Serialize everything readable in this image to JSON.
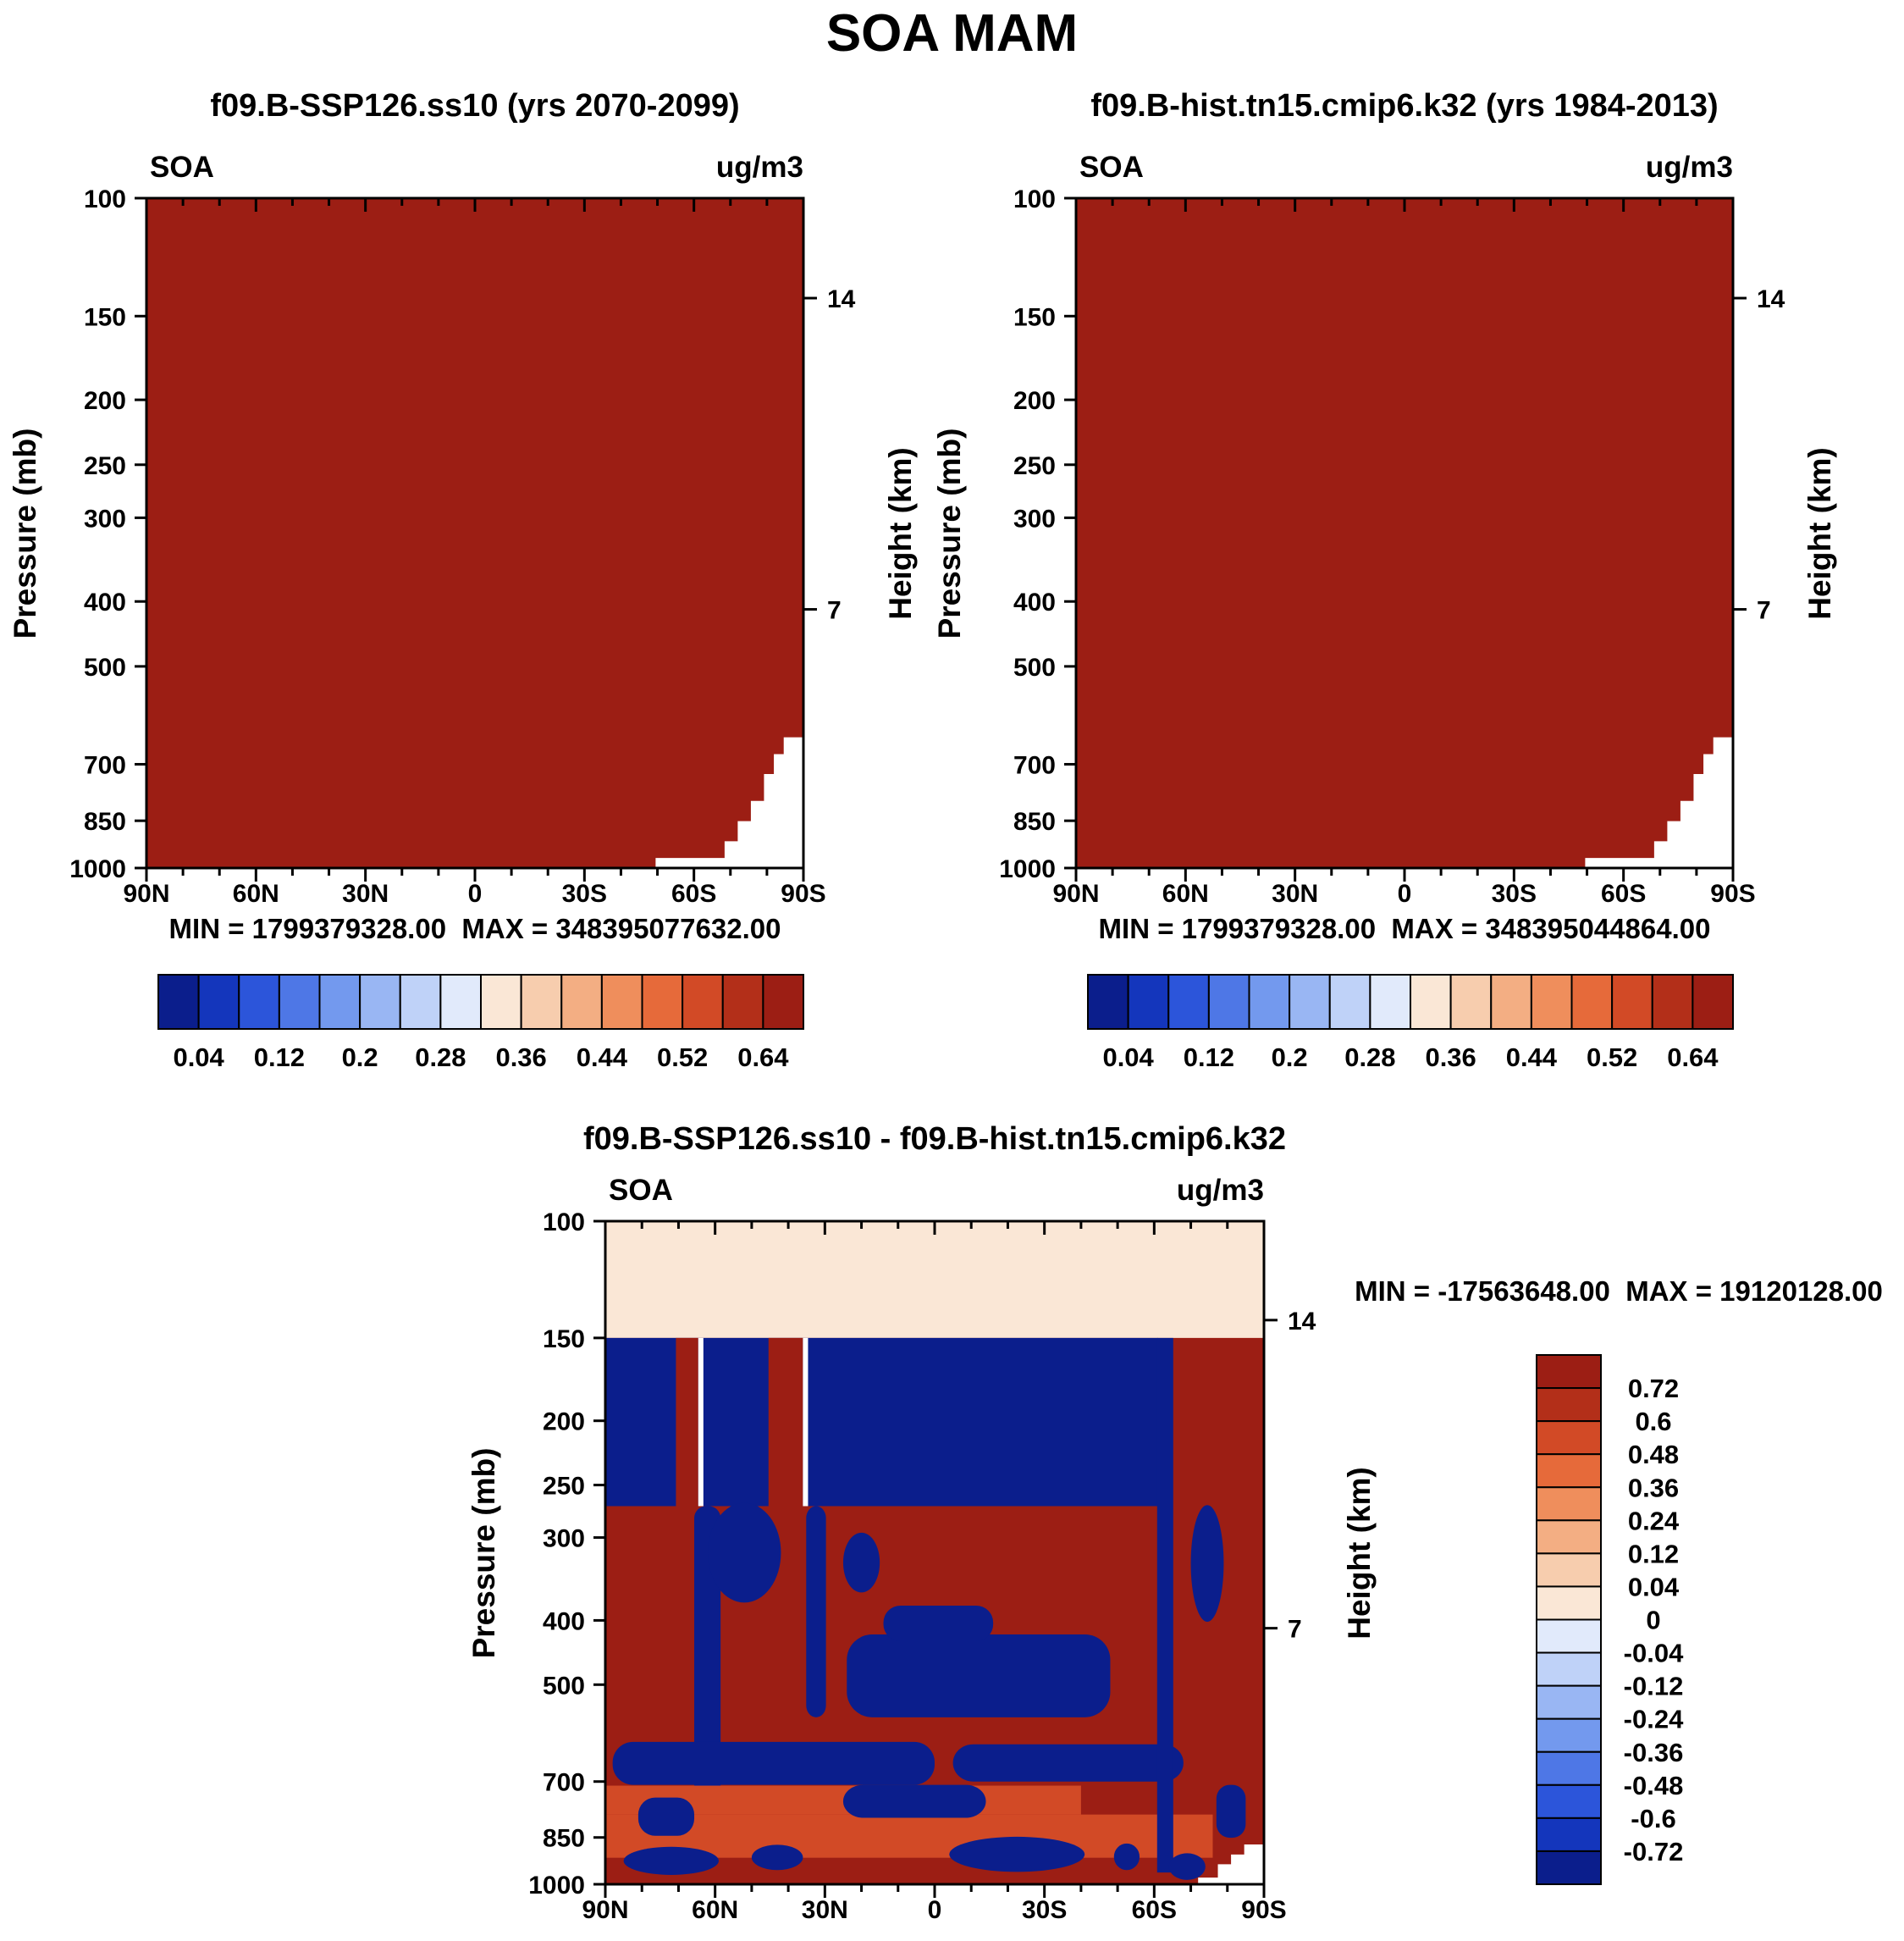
{
  "page": {
    "title": "SOA MAM"
  },
  "colors": {
    "background": "#FFFFFF",
    "frame": "#000000",
    "palette": [
      "#0B1E8C",
      "#1436BC",
      "#2C55DA",
      "#4E77E6",
      "#7399EE",
      "#99B6F3",
      "#BFD2F8",
      "#E1EAFB",
      "#FAE7D6",
      "#F7CDAE",
      "#F3AE83",
      "#EF8E5C",
      "#E66A3A",
      "#D24A26",
      "#B32F19",
      "#9C1E14"
    ]
  },
  "axes": {
    "ylabel": "Pressure (mb)",
    "y2label": "Height (km)",
    "pressure_ticks": [
      100,
      150,
      200,
      250,
      300,
      400,
      500,
      700,
      850,
      1000
    ],
    "height_ticks": [
      {
        "label": "14",
        "pressure": 141
      },
      {
        "label": "7",
        "pressure": 411
      }
    ],
    "lat_ticks": [
      {
        "label": "90N",
        "value": 90
      },
      {
        "label": "60N",
        "value": 60
      },
      {
        "label": "30N",
        "value": 30
      },
      {
        "label": "0",
        "value": 0
      },
      {
        "label": "30S",
        "value": -30
      },
      {
        "label": "60S",
        "value": -60
      },
      {
        "label": "90S",
        "value": -90
      }
    ],
    "lat_minor_step": 10
  },
  "chart_data": [
    {
      "type": "heatmap",
      "panel": "top-left",
      "title": "f09.B-SSP126.ss10 (yrs 2070-2099)",
      "variable": "SOA",
      "units": "ug/m3",
      "season": "MAM",
      "x_axis": {
        "label": "Latitude",
        "ticks": [
          "90N",
          "60N",
          "30N",
          "0",
          "30S",
          "60S",
          "90S"
        ],
        "range": [
          90,
          -90
        ]
      },
      "y_axis": {
        "label": "Pressure (mb)",
        "scale": "log",
        "ticks": [
          100,
          150,
          200,
          250,
          300,
          400,
          500,
          700,
          850,
          1000
        ],
        "range": [
          100,
          1000
        ]
      },
      "y2_axis": {
        "label": "Height (km)",
        "ticks": [
          14,
          7
        ]
      },
      "stats": {
        "min": 1799379328.0,
        "max": 348395077632.0
      },
      "stats_text": "MIN = 1799379328.00  MAX = 348395077632.00",
      "colorbar": {
        "orientation": "horizontal",
        "labels": [
          "0.04",
          "0.12",
          "0.2",
          "0.28",
          "0.36",
          "0.44",
          "0.52",
          "0.64"
        ]
      },
      "base_color": 15,
      "field_note": "Entire cross-section saturated above top contour level (uniform dark red); white staircase at lower right is Antarctic surface topography.",
      "features": [],
      "topography_polygon": [
        [
          -49.5,
          1000
        ],
        [
          -49.5,
          966
        ],
        [
          -68.4,
          966
        ],
        [
          -68.4,
          912
        ],
        [
          -72,
          912
        ],
        [
          -72,
          851
        ],
        [
          -75.6,
          851
        ],
        [
          -75.6,
          794
        ],
        [
          -79.2,
          794
        ],
        [
          -79.2,
          724
        ],
        [
          -81.9,
          724
        ],
        [
          -81.9,
          676
        ],
        [
          -84.6,
          676
        ],
        [
          -84.6,
          638
        ],
        [
          -90,
          638
        ],
        [
          -90,
          1000
        ]
      ]
    },
    {
      "type": "heatmap",
      "panel": "top-right",
      "title": "f09.B-hist.tn15.cmip6.k32 (yrs 1984-2013)",
      "variable": "SOA",
      "units": "ug/m3",
      "season": "MAM",
      "x_axis": {
        "label": "Latitude",
        "ticks": [
          "90N",
          "60N",
          "30N",
          "0",
          "30S",
          "60S",
          "90S"
        ],
        "range": [
          90,
          -90
        ]
      },
      "y_axis": {
        "label": "Pressure (mb)",
        "scale": "log",
        "ticks": [
          100,
          150,
          200,
          250,
          300,
          400,
          500,
          700,
          850,
          1000
        ],
        "range": [
          100,
          1000
        ]
      },
      "y2_axis": {
        "label": "Height (km)",
        "ticks": [
          14,
          7
        ]
      },
      "stats": {
        "min": 1799379328.0,
        "max": 348395044864.0
      },
      "stats_text": "MIN = 1799379328.00  MAX = 348395044864.00",
      "colorbar": {
        "orientation": "horizontal",
        "labels": [
          "0.04",
          "0.12",
          "0.2",
          "0.28",
          "0.36",
          "0.44",
          "0.52",
          "0.64"
        ]
      },
      "base_color": 15,
      "field_note": "Entire cross-section saturated above top contour level (uniform dark red); white staircase at lower right is Antarctic surface topography.",
      "features": [],
      "topography_polygon": [
        [
          -49.5,
          1000
        ],
        [
          -49.5,
          966
        ],
        [
          -68.4,
          966
        ],
        [
          -68.4,
          912
        ],
        [
          -72,
          912
        ],
        [
          -72,
          851
        ],
        [
          -75.6,
          851
        ],
        [
          -75.6,
          794
        ],
        [
          -79.2,
          794
        ],
        [
          -79.2,
          724
        ],
        [
          -81.9,
          724
        ],
        [
          -81.9,
          676
        ],
        [
          -84.6,
          676
        ],
        [
          -84.6,
          638
        ],
        [
          -90,
          638
        ],
        [
          -90,
          1000
        ]
      ]
    },
    {
      "type": "heatmap",
      "panel": "bottom-difference",
      "title": "f09.B-SSP126.ss10 - f09.B-hist.tn15.cmip6.k32",
      "variable": "SOA",
      "units": "ug/m3",
      "season": "MAM",
      "x_axis": {
        "label": "Latitude",
        "ticks": [
          "90N",
          "60N",
          "30N",
          "0",
          "30S",
          "60S",
          "90S"
        ],
        "range": [
          90,
          -90
        ]
      },
      "y_axis": {
        "label": "Pressure (mb)",
        "scale": "log",
        "ticks": [
          100,
          150,
          200,
          250,
          300,
          400,
          500,
          700,
          850,
          1000
        ],
        "range": [
          100,
          1000
        ]
      },
      "y2_axis": {
        "label": "Height (km)",
        "ticks": [
          14,
          7
        ]
      },
      "stats": {
        "min": -17563648.0,
        "max": 19120128.0
      },
      "stats_text": "MIN = -17563648.00  MAX = 19120128.00",
      "colorbar": {
        "orientation": "vertical",
        "labels": [
          "0.72",
          "0.6",
          "0.48",
          "0.36",
          "0.24",
          "0.12",
          "0.04",
          "0",
          "-0.04",
          "-0.12",
          "-0.24",
          "-0.36",
          "-0.48",
          "-0.6",
          "-0.72"
        ]
      },
      "base_color": 15,
      "field_note": "Difference field: weak positive layer above 150 mb; strong negative band 150-270 mb from 90N to ~60S with narrow positive streaks; mottled strong positive below 270 mb with embedded negative blobs and near-surface orange bands; white staircase topography at lower right.",
      "features": [
        {
          "shape": "rect",
          "lat": [
            90,
            -90
          ],
          "p": [
            100,
            150
          ],
          "c": 8
        },
        {
          "shape": "rect",
          "lat": [
            90,
            -61
          ],
          "p": [
            150,
            269
          ],
          "c": 0
        },
        {
          "shape": "rect",
          "lat": [
            70.7,
            64.6
          ],
          "p": [
            150,
            269
          ],
          "c": 15
        },
        {
          "shape": "rect",
          "lat": [
            64.6,
            63.2
          ],
          "p": [
            150,
            269
          ],
          "c": "white"
        },
        {
          "shape": "rect",
          "lat": [
            45.4,
            36
          ],
          "p": [
            150,
            269
          ],
          "c": 15
        },
        {
          "shape": "rect",
          "lat": [
            36,
            34.6
          ],
          "p": [
            150,
            269
          ],
          "c": "white"
        },
        {
          "shape": "rect",
          "lat": [
            65.7,
            58.5
          ],
          "p": [
            269,
            760
          ],
          "c": 0,
          "r": 14
        },
        {
          "shape": "rect",
          "lat": [
            35.1,
            29.7
          ],
          "p": [
            269,
            560
          ],
          "c": 0,
          "r": 14
        },
        {
          "shape": "ellipse",
          "lat": [
            62,
            42
          ],
          "p": [
            266,
            376
          ],
          "c": 0
        },
        {
          "shape": "ellipse",
          "lat": [
            25,
            15
          ],
          "p": [
            295,
            363
          ],
          "c": 0
        },
        {
          "shape": "rect",
          "lat": [
            24,
            -48
          ],
          "p": [
            420,
            560
          ],
          "c": 0,
          "r": 30
        },
        {
          "shape": "rect",
          "lat": [
            14,
            -16
          ],
          "p": [
            380,
            430
          ],
          "c": 0,
          "r": 20
        },
        {
          "shape": "rect",
          "lat": [
            88,
            0
          ],
          "p": [
            610,
            708
          ],
          "c": 0,
          "r": 24
        },
        {
          "shape": "rect",
          "lat": [
            -5,
            -68
          ],
          "p": [
            615,
            700
          ],
          "c": 0,
          "r": 24
        },
        {
          "shape": "rect",
          "lat": [
            90,
            -40
          ],
          "p": [
            710,
            785
          ],
          "c": 13
        },
        {
          "shape": "rect",
          "lat": [
            90,
            -76
          ],
          "p": [
            785,
            912
          ],
          "c": 13
        },
        {
          "shape": "rect",
          "lat": [
            81,
            65.7
          ],
          "p": [
            740,
            845
          ],
          "c": 0,
          "r": 20
        },
        {
          "shape": "rect",
          "lat": [
            25,
            -14
          ],
          "p": [
            708,
            794
          ],
          "c": 0,
          "r": 24
        },
        {
          "shape": "ellipse",
          "lat": [
            85,
            59
          ],
          "p": [
            878,
            968
          ],
          "c": 0
        },
        {
          "shape": "ellipse",
          "lat": [
            50,
            36
          ],
          "p": [
            872,
            952
          ],
          "c": 0
        },
        {
          "shape": "ellipse",
          "lat": [
            -4,
            -41
          ],
          "p": [
            848,
            958
          ],
          "c": 0
        },
        {
          "shape": "ellipse",
          "lat": [
            -49,
            -56
          ],
          "p": [
            868,
            952
          ],
          "c": 0
        },
        {
          "shape": "rect",
          "lat": [
            -60.8,
            -65.2
          ],
          "p": [
            150,
            960
          ],
          "c": 0
        },
        {
          "shape": "ellipse",
          "lat": [
            -70,
            -79
          ],
          "p": [
            268,
            402
          ],
          "c": 0
        },
        {
          "shape": "rect",
          "lat": [
            -77,
            -85
          ],
          "p": [
            708,
            851
          ],
          "c": 0,
          "r": 16
        },
        {
          "shape": "ellipse",
          "lat": [
            -64,
            -74
          ],
          "p": [
            898,
            985
          ],
          "c": 0
        }
      ],
      "topography_polygon": [
        [
          -72,
          1000
        ],
        [
          -72,
          977
        ],
        [
          -77.4,
          977
        ],
        [
          -77.4,
          933
        ],
        [
          -81,
          933
        ],
        [
          -81,
          902
        ],
        [
          -84.6,
          902
        ],
        [
          -84.6,
          871
        ],
        [
          -90,
          871
        ],
        [
          -90,
          1000
        ]
      ]
    }
  ]
}
